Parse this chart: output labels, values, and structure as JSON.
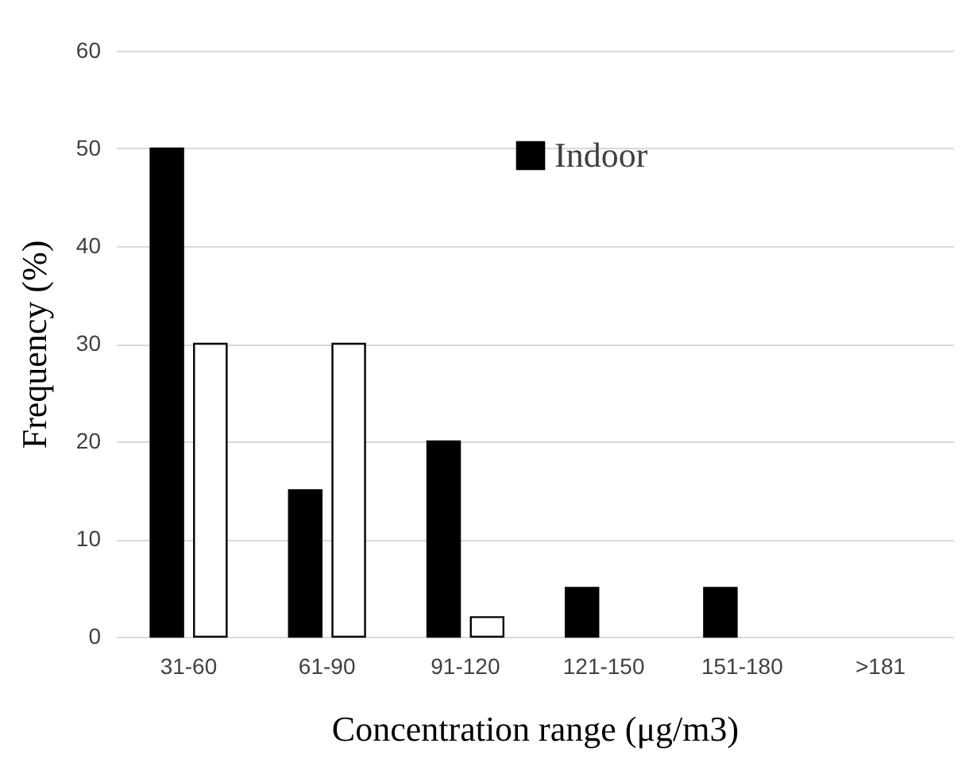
{
  "chart_data": {
    "type": "bar",
    "xlabel": "Concentration range (μg/m3)",
    "ylabel": "Frequency (%)",
    "categories": [
      "31-60",
      "61-90",
      "91-120",
      "121-150",
      "151-180",
      ">181"
    ],
    "series": [
      {
        "name": "Indoor",
        "color": "#000000",
        "values": [
          50,
          15,
          20,
          5,
          5,
          0
        ]
      },
      {
        "color": "#ffffff",
        "values": [
          30,
          30,
          2,
          0,
          0,
          0
        ]
      }
    ],
    "ylim": [
      0,
      60
    ],
    "yticks": [
      0,
      10,
      20,
      30,
      40,
      50,
      60
    ],
    "grid": "y",
    "legend": "top"
  }
}
